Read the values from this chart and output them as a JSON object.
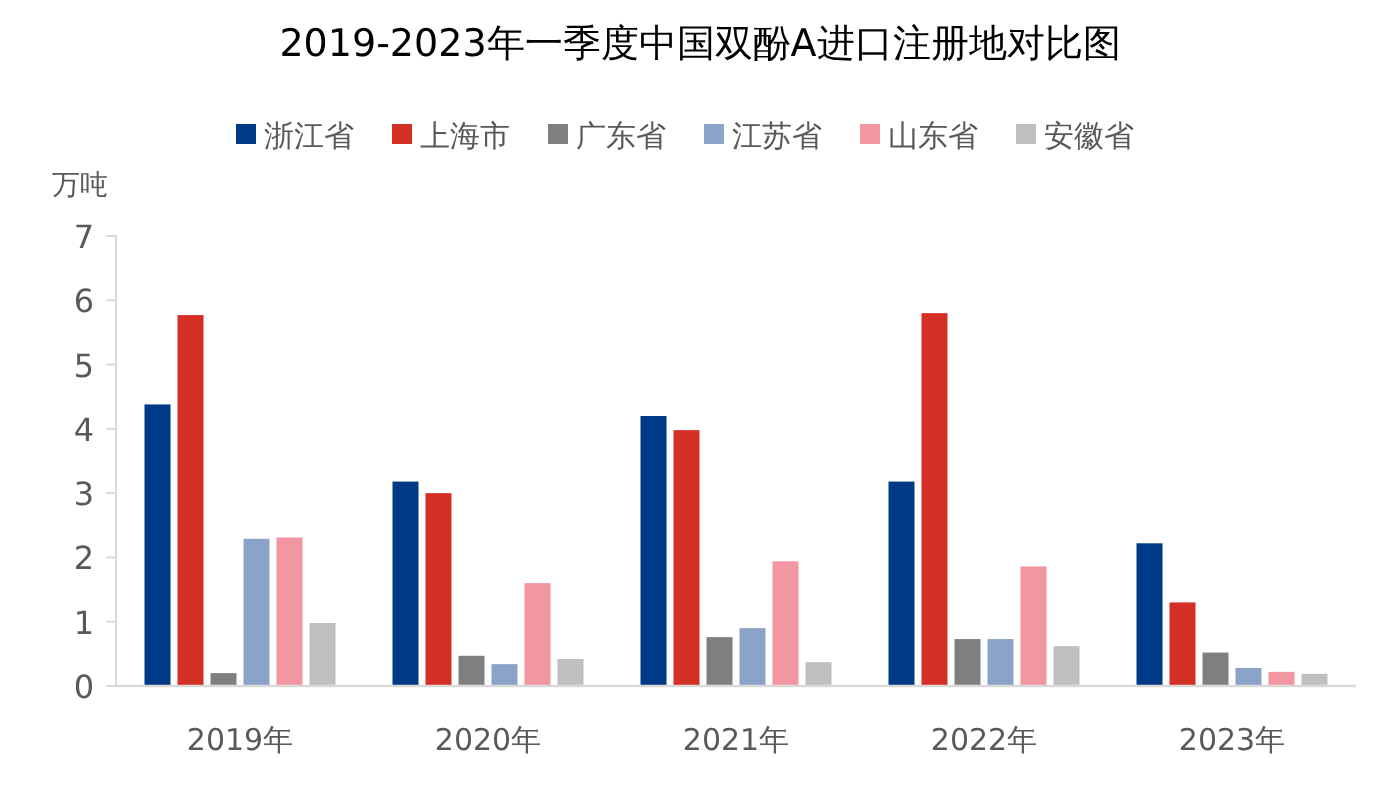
{
  "chart_data": {
    "type": "bar",
    "title": "2019-2023年一季度中国双酚A进口注册地对比图",
    "ylabel": "万吨",
    "categories": [
      "2019年",
      "2020年",
      "2021年",
      "2022年",
      "2023年"
    ],
    "series": [
      {
        "name": "浙江省",
        "color": "#003a86",
        "values": [
          4.38,
          3.18,
          4.2,
          3.18,
          2.22
        ]
      },
      {
        "name": "上海市",
        "color": "#d42f24",
        "values": [
          5.77,
          3.0,
          3.98,
          5.8,
          1.3
        ]
      },
      {
        "name": "广东省",
        "color": "#7f7f7f",
        "values": [
          0.2,
          0.47,
          0.76,
          0.73,
          0.52
        ]
      },
      {
        "name": "江苏省",
        "color": "#8ba3c8",
        "values": [
          2.29,
          0.34,
          0.9,
          0.73,
          0.28
        ]
      },
      {
        "name": "山东省",
        "color": "#f296a1",
        "values": [
          2.31,
          1.6,
          1.94,
          1.86,
          0.22
        ]
      },
      {
        "name": "安徽省",
        "color": "#bfbfbf",
        "values": [
          0.98,
          0.42,
          0.37,
          0.62,
          0.19
        ]
      }
    ],
    "ylim": [
      0,
      7
    ],
    "yticks": [
      0,
      1,
      2,
      3,
      4,
      5,
      6,
      7
    ],
    "grid": false,
    "legend": "top"
  }
}
